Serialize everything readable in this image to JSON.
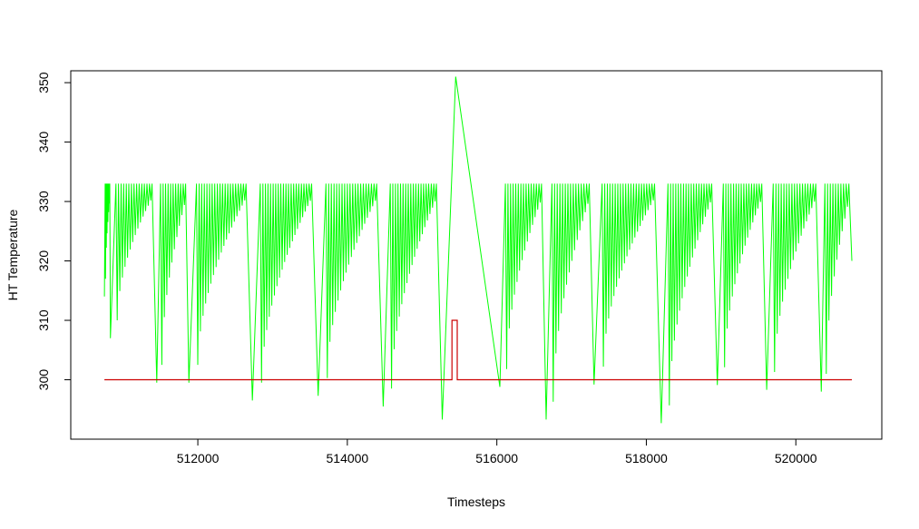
{
  "chart_data": {
    "type": "line",
    "title": "",
    "xlabel": "Timesteps",
    "ylabel": "HT Temperature",
    "xlim": [
      510300,
      521150
    ],
    "ylim": [
      290,
      352
    ],
    "x_ticks": [
      512000,
      514000,
      516000,
      518000,
      520000
    ],
    "y_ticks": [
      300,
      310,
      320,
      330,
      340,
      350
    ],
    "grid": false,
    "legend": "none",
    "series": [
      {
        "color": "#00ff00",
        "style": "sawtooth-oscillation",
        "cycle_minima": [
          [
            510750,
            314
          ],
          [
            510830,
            307
          ],
          [
            511450,
            299.5
          ],
          [
            511880,
            299.5
          ],
          [
            512730,
            296.5
          ],
          [
            513610,
            297.3
          ],
          [
            514480,
            295.5
          ],
          [
            515270,
            293.3
          ],
          [
            516040,
            298.8
          ],
          [
            516660,
            293.3
          ],
          [
            517300,
            299.2
          ],
          [
            518200,
            292.7
          ],
          [
            518950,
            299.1
          ],
          [
            519610,
            298.3
          ],
          [
            520340,
            298
          ]
        ],
        "upper_level": 333,
        "spike": {
          "x": 515450,
          "y": 351
        },
        "end": [
          520750,
          320
        ]
      },
      {
        "color": "#cc0000",
        "points": [
          [
            510750,
            300
          ],
          [
            515400,
            300
          ],
          [
            515400,
            310
          ],
          [
            515470,
            310
          ],
          [
            515470,
            300
          ],
          [
            520750,
            300
          ]
        ]
      }
    ]
  }
}
